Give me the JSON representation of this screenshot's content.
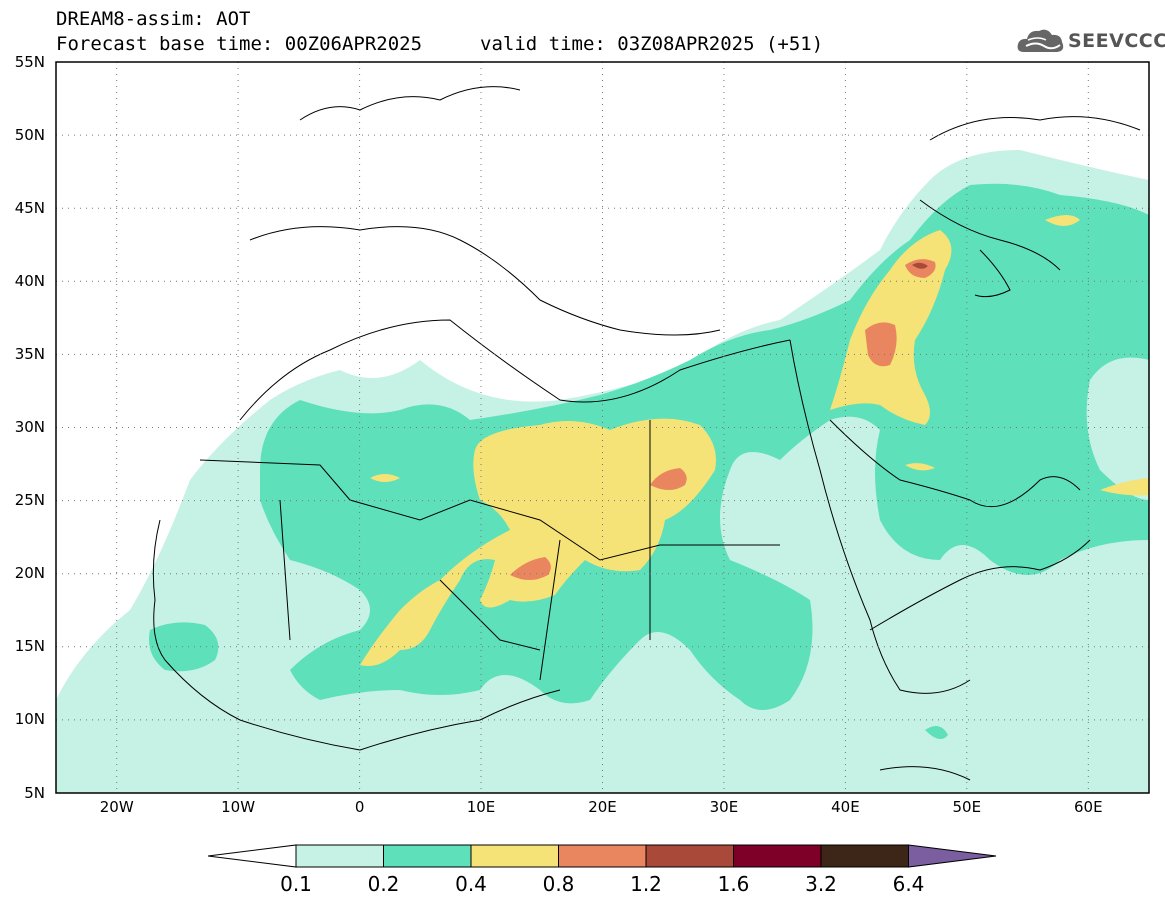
{
  "header": {
    "title": "DREAM8-assim: AOT",
    "base_time": "Forecast base time: 00Z06APR2025",
    "valid_time": "valid time: 03Z08APR2025 (+51)"
  },
  "logo": {
    "text": "SEEVCCC",
    "icon": "cloud-icon"
  },
  "map": {
    "lat_labels": [
      "55N",
      "50N",
      "45N",
      "40N",
      "35N",
      "30N",
      "25N",
      "20N",
      "15N",
      "10N",
      "5N"
    ],
    "lon_labels": [
      "20W",
      "10W",
      "0",
      "10E",
      "20E",
      "30E",
      "40E",
      "50E",
      "60E"
    ],
    "lat_range": [
      5,
      55
    ],
    "lon_range": [
      -25,
      65
    ],
    "grid": "dotted"
  },
  "colorbar": {
    "labels": [
      "0.1",
      "0.2",
      "0.4",
      "0.8",
      "1.2",
      "1.6",
      "3.2",
      "6.4"
    ],
    "colors": [
      "#ffffff",
      "#c6f1e5",
      "#5ee0ba",
      "#f6e377",
      "#e9865f",
      "#a8493a",
      "#7e0028",
      "#3d2618",
      "#7b5e9f"
    ]
  }
}
